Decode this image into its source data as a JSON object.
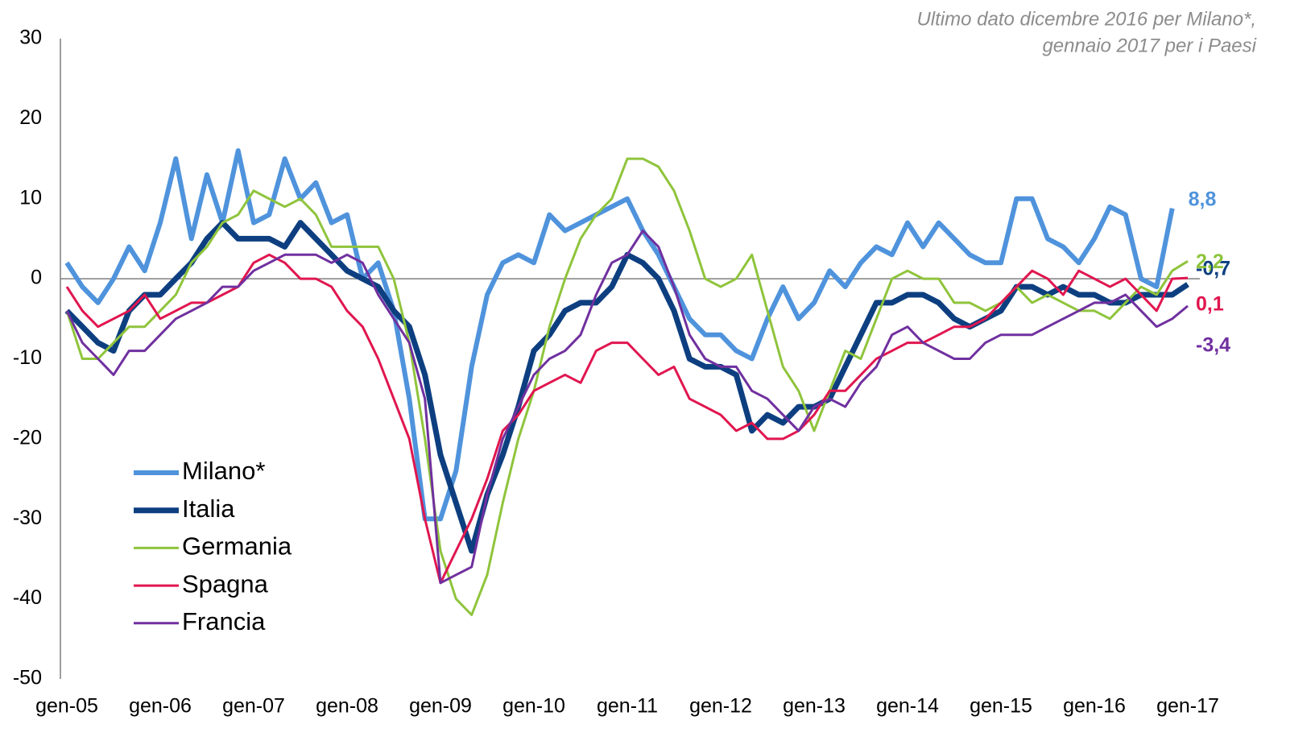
{
  "chart_data": {
    "type": "line",
    "annotation": [
      "Ultimo dato dicembre 2016 per Milano*,",
      "gennaio 2017 per i Paesi"
    ],
    "categories": [
      "gen-05",
      null,
      null,
      null,
      null,
      null,
      "gen-06",
      null,
      null,
      null,
      null,
      null,
      "gen-07",
      null,
      null,
      null,
      null,
      null,
      "gen-08",
      null,
      null,
      null,
      null,
      null,
      "gen-09",
      null,
      null,
      null,
      null,
      null,
      "gen-10",
      null,
      null,
      null,
      null,
      null,
      "gen-11",
      null,
      null,
      null,
      null,
      null,
      "gen-12",
      null,
      null,
      null,
      null,
      null,
      "gen-13",
      null,
      null,
      null,
      null,
      null,
      "gen-14",
      null,
      null,
      null,
      null,
      null,
      "gen-15",
      null,
      null,
      null,
      null,
      null,
      "gen-16",
      null,
      null,
      null,
      null,
      null,
      "gen-17"
    ],
    "series": [
      {
        "name": "Milano*",
        "color": "#4f93dc",
        "width": 6,
        "end_label": "8,8",
        "values": [
          2,
          -1,
          -3,
          0,
          4,
          1,
          7,
          15,
          5,
          13,
          7,
          16,
          7,
          8,
          15,
          10,
          12,
          7,
          8,
          0,
          2,
          -4,
          -15,
          -30,
          -30,
          -24,
          -11,
          -2,
          2,
          3,
          2,
          8,
          6,
          7,
          8,
          9,
          10,
          6,
          3,
          -1,
          -5,
          -7,
          -7,
          -9,
          -10,
          -5,
          -1,
          -5,
          -3,
          1,
          -1,
          2,
          4,
          3,
          7,
          4,
          7,
          5,
          3,
          2,
          2,
          10,
          10,
          5,
          4,
          2,
          5,
          9,
          8,
          0,
          -1,
          8.8,
          null
        ]
      },
      {
        "name": "Italia",
        "color": "#0d3f80",
        "width": 7,
        "end_label": "-0,7",
        "values": [
          -4,
          -6,
          -8,
          -9,
          -4,
          -2,
          -2,
          0,
          2,
          5,
          7,
          5,
          5,
          5,
          4,
          7,
          5,
          3,
          1,
          0,
          -1,
          -4,
          -6,
          -12,
          -22,
          -28,
          -34,
          -27,
          -22,
          -16,
          -9,
          -7,
          -4,
          -3,
          -3,
          -1,
          3,
          2,
          0,
          -4,
          -10,
          -11,
          -11,
          -12,
          -19,
          -17,
          -18,
          -16,
          -16,
          -15,
          -11,
          -7,
          -3,
          -3,
          -2,
          -2,
          -3,
          -5,
          -6,
          -5,
          -4,
          -1,
          -1,
          -2,
          -1,
          -2,
          -2,
          -3,
          -3,
          -2,
          -2,
          -2,
          -0.7
        ]
      },
      {
        "name": "Germania",
        "color": "#8fc43c",
        "width": 3,
        "end_label": "2,2",
        "values": [
          -4,
          -10,
          -10,
          -8,
          -6,
          -6,
          -4,
          -2,
          2,
          4,
          7,
          8,
          11,
          10,
          9,
          10,
          8,
          4,
          4,
          4,
          4,
          0,
          -8,
          -20,
          -34,
          -40,
          -42,
          -37,
          -28,
          -20,
          -14,
          -6,
          0,
          5,
          8,
          10,
          15,
          15,
          14,
          11,
          6,
          0,
          -1,
          0,
          3,
          -4,
          -11,
          -14,
          -19,
          -14,
          -9,
          -10,
          -5,
          0,
          1,
          0,
          0,
          -3,
          -3,
          -4,
          -3,
          -1,
          -3,
          -2,
          -3,
          -4,
          -4,
          -5,
          -3,
          -1,
          -2,
          1,
          2.2
        ]
      },
      {
        "name": "Spagna",
        "color": "#e0164f",
        "width": 3,
        "end_label": "0,1",
        "values": [
          -1,
          -4,
          -6,
          -5,
          -4,
          -2,
          -5,
          -4,
          -3,
          -3,
          -2,
          -1,
          2,
          3,
          2,
          0,
          0,
          -1,
          -4,
          -6,
          -10,
          -15,
          -20,
          -30,
          -38,
          -34,
          -30,
          -25,
          -19,
          -17,
          -14,
          -13,
          -12,
          -13,
          -9,
          -8,
          -8,
          -10,
          -12,
          -11,
          -15,
          -16,
          -17,
          -19,
          -18,
          -20,
          -20,
          -19,
          -17,
          -14,
          -14,
          -12,
          -10,
          -9,
          -8,
          -8,
          -7,
          -6,
          -6,
          -5,
          -3,
          -1,
          1,
          0,
          -2,
          1,
          0,
          -1,
          0,
          -2,
          -4,
          0,
          0.1
        ]
      },
      {
        "name": "Francia",
        "color": "#70309f",
        "width": 3,
        "end_label": "-3,4",
        "values": [
          -4,
          -8,
          -10,
          -12,
          -9,
          -9,
          -7,
          -5,
          -4,
          -3,
          -1,
          -1,
          1,
          2,
          3,
          3,
          3,
          2,
          3,
          2,
          -2,
          -5,
          -8,
          -15,
          -38,
          -37,
          -36,
          -27,
          -20,
          -16,
          -12,
          -10,
          -9,
          -7,
          -2,
          2,
          3,
          6,
          4,
          -1,
          -7,
          -10,
          -11,
          -11,
          -14,
          -15,
          -17,
          -19,
          -16,
          -15,
          -16,
          -13,
          -11,
          -7,
          -6,
          -8,
          -9,
          -10,
          -10,
          -8,
          -7,
          -7,
          -7,
          -6,
          -5,
          -4,
          -3,
          -3,
          -2,
          -4,
          -6,
          -5,
          -3.4
        ]
      }
    ],
    "ylim": [
      -50,
      30
    ],
    "yticks": [
      -50,
      -40,
      -30,
      -20,
      -10,
      0,
      10,
      20,
      30
    ]
  }
}
